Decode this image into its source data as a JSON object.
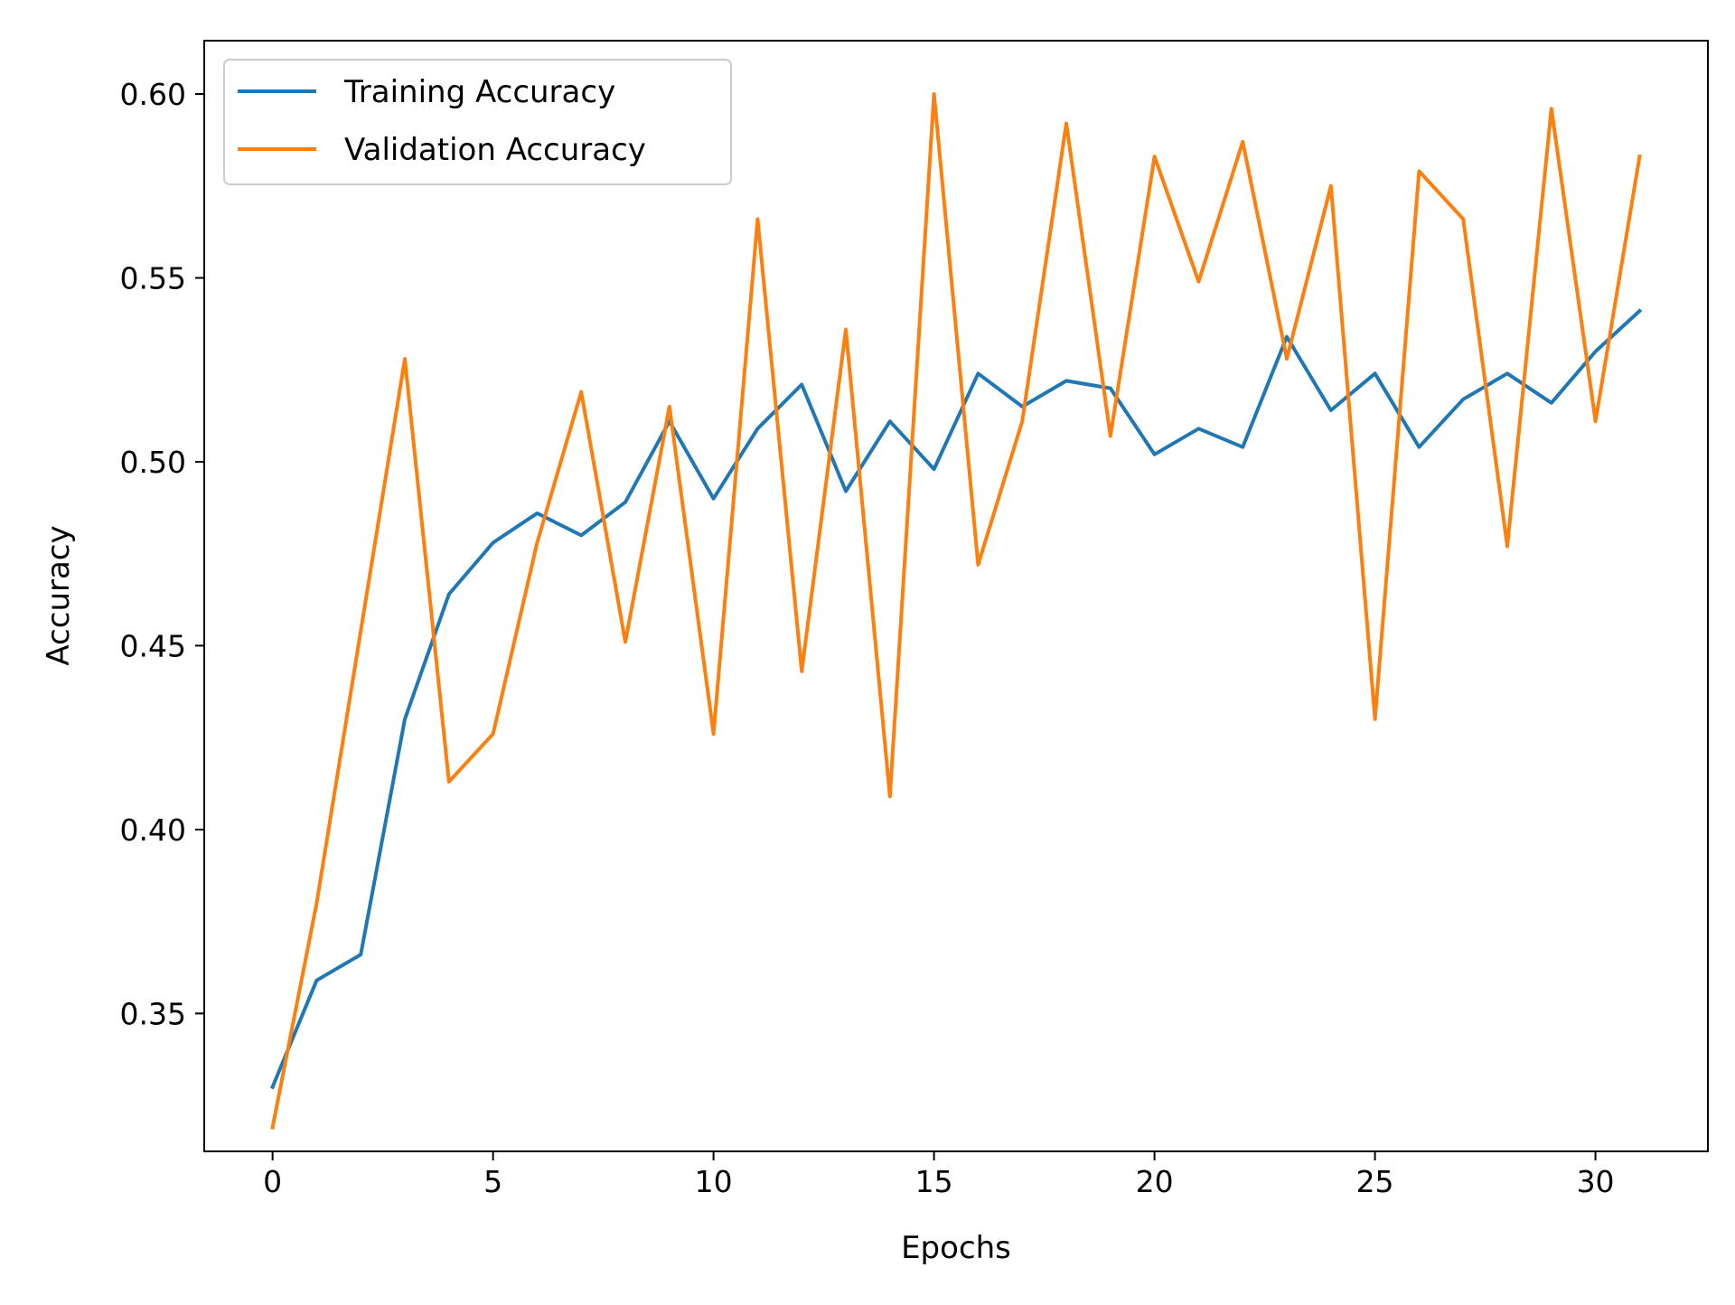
{
  "chart_data": {
    "type": "line",
    "title": "",
    "xlabel": "Epochs",
    "ylabel": "Accuracy",
    "xlim": [
      -1.55,
      32.55
    ],
    "ylim": [
      0.3125,
      0.6145
    ],
    "xticks": [
      0,
      5,
      10,
      15,
      20,
      25,
      30
    ],
    "xtick_labels": [
      "0",
      "5",
      "10",
      "15",
      "20",
      "25",
      "30"
    ],
    "yticks": [
      0.35,
      0.4,
      0.45,
      0.5,
      0.55,
      0.6
    ],
    "ytick_labels": [
      "0.35",
      "0.40",
      "0.45",
      "0.50",
      "0.55",
      "0.60"
    ],
    "grid": false,
    "legend": "upper-left",
    "x": [
      0,
      1,
      2,
      3,
      4,
      5,
      6,
      7,
      8,
      9,
      10,
      11,
      12,
      13,
      14,
      15,
      16,
      17,
      18,
      19,
      20,
      21,
      22,
      23,
      24,
      25,
      26,
      27,
      28,
      29,
      30,
      31
    ],
    "series": [
      {
        "name": "Training Accuracy",
        "color": "#1f77b4",
        "values": [
          0.33,
          0.359,
          0.366,
          0.43,
          0.464,
          0.478,
          0.486,
          0.48,
          0.489,
          0.511,
          0.49,
          0.509,
          0.521,
          0.492,
          0.511,
          0.498,
          0.524,
          0.515,
          0.522,
          0.52,
          0.502,
          0.509,
          0.504,
          0.534,
          0.514,
          0.524,
          0.504,
          0.517,
          0.524,
          0.516,
          0.53,
          0.541
        ]
      },
      {
        "name": "Validation Accuracy",
        "color": "#ff7f0e",
        "values": [
          0.319,
          0.38,
          0.454,
          0.528,
          0.413,
          0.426,
          0.478,
          0.519,
          0.451,
          0.515,
          0.426,
          0.566,
          0.443,
          0.536,
          0.409,
          0.6,
          0.472,
          0.511,
          0.592,
          0.507,
          0.583,
          0.549,
          0.587,
          0.528,
          0.575,
          0.43,
          0.579,
          0.566,
          0.477,
          0.596,
          0.511,
          0.583
        ]
      }
    ]
  }
}
